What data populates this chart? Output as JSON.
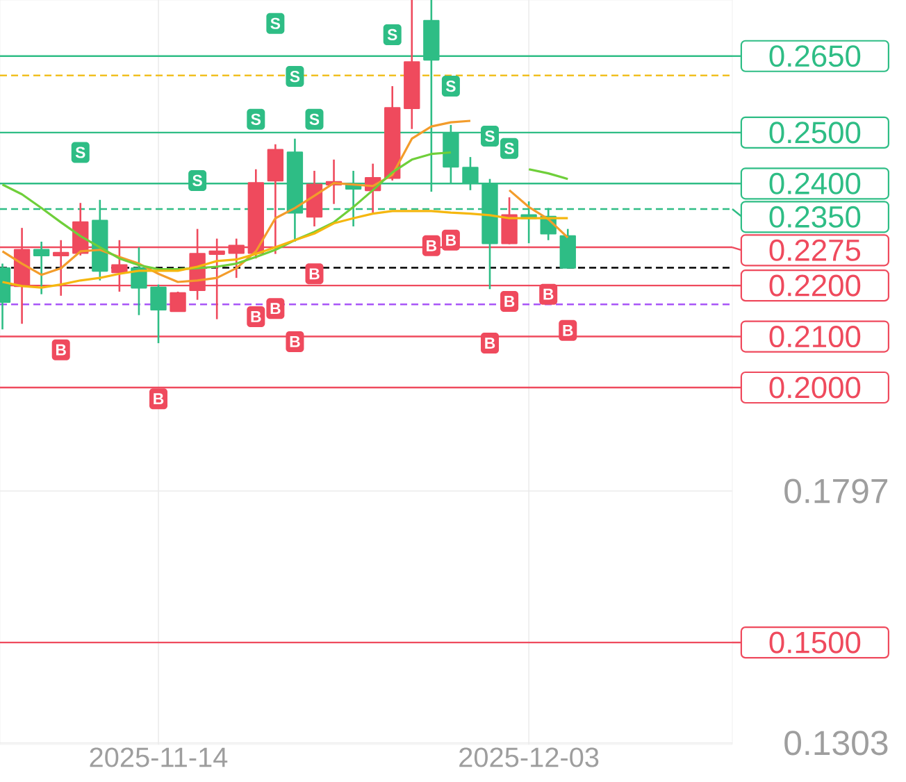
{
  "chart_data": {
    "type": "candlestick",
    "x": [
      "2025-11-06",
      "2025-11-07",
      "2025-11-08",
      "2025-11-09",
      "2025-11-10",
      "2025-11-11",
      "2025-11-12",
      "2025-11-13",
      "2025-11-14",
      "2025-11-15",
      "2025-11-16",
      "2025-11-17",
      "2025-11-18",
      "2025-11-19",
      "2025-11-20",
      "2025-11-21",
      "2025-11-22",
      "2025-11-23",
      "2025-11-24",
      "2025-11-25",
      "2025-11-26",
      "2025-11-27",
      "2025-11-28",
      "2025-11-29",
      "2025-11-30",
      "2025-12-01",
      "2025-12-02",
      "2025-12-03",
      "2025-12-04",
      "2025-12-05"
    ],
    "ohlc": [
      [
        0.2234,
        0.2243,
        0.2114,
        0.2168
      ],
      [
        0.2199,
        0.2313,
        0.2125,
        0.227
      ],
      [
        0.227,
        0.2286,
        0.2183,
        0.2259
      ],
      [
        0.2259,
        0.2289,
        0.218,
        0.2264
      ],
      [
        0.2264,
        0.2362,
        0.2259,
        0.2324
      ],
      [
        0.2327,
        0.2368,
        0.221,
        0.2229
      ],
      [
        0.2226,
        0.2289,
        0.2188,
        0.224
      ],
      [
        0.2234,
        0.2275,
        0.2142,
        0.2196
      ],
      [
        0.2196,
        0.2202,
        0.2087,
        0.2153
      ],
      [
        0.215,
        0.2188,
        0.215,
        0.2185
      ],
      [
        0.2191,
        0.2311,
        0.2172,
        0.2262
      ],
      [
        0.2262,
        0.2292,
        0.2134,
        0.2267
      ],
      [
        0.2264,
        0.2292,
        0.2215,
        0.2278
      ],
      [
        0.2264,
        0.2428,
        0.2253,
        0.2401
      ],
      [
        0.2406,
        0.2477,
        0.2262,
        0.2466
      ],
      [
        0.2461,
        0.2488,
        0.2286,
        0.2343
      ],
      [
        0.2335,
        0.2425,
        0.2316,
        0.2398
      ],
      [
        0.2398,
        0.2447,
        0.236,
        0.2403
      ],
      [
        0.2398,
        0.2425,
        0.2316,
        0.239
      ],
      [
        0.2387,
        0.2439,
        0.2343,
        0.2411
      ],
      [
        0.2411,
        0.2591,
        0.2406,
        0.2548
      ],
      [
        0.2548,
        0.276,
        0.2507,
        0.2638
      ],
      [
        0.2719,
        0.276,
        0.2384,
        0.2643
      ],
      [
        0.2499,
        0.2515,
        0.2401,
        0.2433
      ],
      [
        0.2431,
        0.2452,
        0.2387,
        0.2401
      ],
      [
        0.2398,
        0.2409,
        0.2193,
        0.2283
      ],
      [
        0.2283,
        0.2373,
        0.2281,
        0.2338
      ],
      [
        0.2338,
        0.2365,
        0.2283,
        0.2332
      ],
      [
        0.2335,
        0.2352,
        0.2289,
        0.2302
      ],
      [
        0.2297,
        0.2311,
        0.2234,
        0.2235
      ]
    ],
    "colors": [
      "#2ebd85",
      "#ef4a5d",
      "#2ebd85",
      "#ef4a5d",
      "#ef4a5d",
      "#2ebd85",
      "#ef4a5d",
      "#2ebd85",
      "#2ebd85",
      "#ef4a5d",
      "#ef4a5d",
      "#ef4a5d",
      "#ef4a5d",
      "#ef4a5d",
      "#ef4a5d",
      "#2ebd85",
      "#ef4a5d",
      "#ef4a5d",
      "#2ebd85",
      "#ef4a5d",
      "#ef4a5d",
      "#ef4a5d",
      "#2ebd85",
      "#2ebd85",
      "#2ebd85",
      "#2ebd85",
      "#ef4a5d",
      "#2ebd85",
      "#2ebd85",
      "#2ebd85"
    ],
    "series": [
      {
        "type": "line",
        "color": "#f39c2b",
        "values": [
          0.2267,
          0.2243,
          0.2221,
          0.2234,
          0.2267,
          0.227,
          0.2256,
          0.2243,
          0.2223,
          0.2207,
          0.221,
          0.2215,
          0.2234,
          0.2267,
          0.2332,
          0.2352,
          0.2376,
          0.2401,
          0.2398,
          0.2395,
          0.2417,
          0.2488,
          0.2512,
          0.252,
          0.2523,
          null,
          0.2387,
          0.2354,
          0.233,
          0.2294
        ]
      },
      {
        "type": "line",
        "color": "#6fcf3a",
        "values": [
          0.2398,
          0.2379,
          0.2352,
          0.2324,
          0.2297,
          0.2275,
          0.2253,
          0.224,
          0.2232,
          0.2232,
          0.2234,
          0.2237,
          0.2243,
          0.2256,
          0.227,
          0.2289,
          0.2305,
          0.2324,
          0.2354,
          0.2387,
          0.2422,
          0.2447,
          0.2458,
          0.2461,
          null,
          null,
          null,
          0.2428,
          0.242,
          0.2409
        ]
      },
      {
        "type": "line",
        "color": "#f5b70f",
        "values": [
          0.2207,
          0.2199,
          0.2196,
          0.2202,
          0.221,
          0.2215,
          0.2223,
          0.2229,
          0.2229,
          0.2229,
          0.2237,
          0.2248,
          0.2251,
          0.2262,
          0.2275,
          0.2289,
          0.2302,
          0.2322,
          0.2332,
          0.2341,
          0.2346,
          0.2346,
          0.2346,
          0.2343,
          0.2341,
          0.2338,
          0.2332,
          0.2332,
          0.2332,
          0.2332
        ]
      },
      {
        "type": "scatter",
        "color": "#2ebd85",
        "x": [
          "2025-11-10",
          "2025-11-16",
          "2025-11-19",
          "2025-11-20",
          "2025-11-21",
          "2025-11-22",
          "2025-11-26",
          "2025-11-29",
          "2025-12-01",
          "2025-12-02"
        ],
        "values": [
          0.2461,
          0.2406,
          0.2526,
          0.2714,
          0.261,
          0.2526,
          0.2692,
          0.2591,
          0.2493,
          0.2469
        ],
        "value_labels": [
          "S",
          "S",
          "S",
          "S",
          "S",
          "S",
          "S",
          "S",
          "S",
          "S"
        ]
      },
      {
        "type": "scatter",
        "color": "#ef4a5d",
        "x": [
          "2025-11-09",
          "2025-11-14",
          "2025-11-19",
          "2025-11-20",
          "2025-11-21",
          "2025-11-22",
          "2025-11-28",
          "2025-11-29",
          "2025-12-01",
          "2025-12-02",
          "2025-12-04",
          "2025-12-05"
        ],
        "values": [
          0.2074,
          0.1978,
          0.2139,
          0.2155,
          0.209,
          0.2223,
          0.2278,
          0.2289,
          0.2087,
          0.2169,
          0.2183,
          0.2112
        ],
        "value_labels": [
          "B",
          "B",
          "B",
          "B",
          "B",
          "B",
          "B",
          "B",
          "B",
          "B",
          "B",
          "B"
        ]
      }
    ],
    "xlim": [
      "2025-11-05T21:00",
      "2025-12-13T10:30"
    ],
    "ylim": [
      0.13,
      0.276
    ],
    "xticks": [
      "2025-11-14",
      "2025-12-03"
    ],
    "yticks": [
      0.1303,
      0.1797
    ],
    "grid": true,
    "ref_lines": [
      {
        "axis": "y",
        "value": 0.265,
        "label": "0.2650",
        "color": "#2ebd85"
      },
      {
        "axis": "y",
        "value": 0.2612,
        "color": "#f0b90b",
        "line_style": "dashed"
      },
      {
        "axis": "y",
        "value": 0.25,
        "label": "0.2500",
        "color": "#2ebd85"
      },
      {
        "axis": "y",
        "value": 0.24,
        "label": "0.2400",
        "color": "#2ebd85"
      },
      {
        "axis": "y",
        "value": 0.235,
        "label": "0.2350",
        "color": "#2ebd85",
        "line_style": "dashed"
      },
      {
        "axis": "y",
        "value": 0.2275,
        "label": "0.2275",
        "color": "#ef4a5d"
      },
      {
        "axis": "y",
        "value": 0.2235,
        "color": "#000000",
        "line_style": "dashed"
      },
      {
        "axis": "y",
        "value": 0.22,
        "label": "0.2200",
        "color": "#ef4a5d"
      },
      {
        "axis": "y",
        "value": 0.2163,
        "color": "#a855f7",
        "line_style": "dashed"
      },
      {
        "axis": "y",
        "value": 0.21,
        "label": "0.2100",
        "color": "#ef4a5d"
      },
      {
        "axis": "y",
        "value": 0.2,
        "label": "0.2000",
        "color": "#ef4a5d"
      },
      {
        "axis": "y",
        "value": 0.15,
        "label": "0.1500",
        "color": "#ef4a5d"
      }
    ]
  }
}
